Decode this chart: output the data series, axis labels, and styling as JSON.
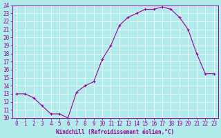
{
  "x": [
    0,
    1,
    2,
    3,
    4,
    5,
    6,
    7,
    8,
    9,
    10,
    11,
    12,
    13,
    14,
    15,
    16,
    17,
    18,
    19,
    20,
    21,
    22,
    23
  ],
  "y": [
    13.0,
    13.0,
    12.5,
    11.5,
    10.5,
    10.5,
    10.0,
    13.2,
    14.0,
    14.5,
    17.3,
    19.0,
    21.5,
    22.5,
    23.0,
    23.5,
    23.5,
    23.8,
    23.5,
    22.5,
    21.0,
    18.0,
    15.5,
    15.5
  ],
  "line_color": "#990099",
  "marker": "+",
  "marker_size": 3,
  "bg_color": "#b2ebeb",
  "grid_color": "#ffffff",
  "xlabel": "Windchill (Refroidissement éolien,°C)",
  "xlabel_color": "#990099",
  "tick_color": "#990099",
  "axis_color": "#990099",
  "ylim": [
    10,
    24
  ],
  "xlim": [
    -0.5,
    23.5
  ],
  "yticks": [
    10,
    11,
    12,
    13,
    14,
    15,
    16,
    17,
    18,
    19,
    20,
    21,
    22,
    23,
    24
  ],
  "xticks": [
    0,
    1,
    2,
    3,
    4,
    5,
    6,
    7,
    8,
    9,
    10,
    11,
    12,
    13,
    14,
    15,
    16,
    17,
    18,
    19,
    20,
    21,
    22,
    23
  ],
  "tick_fontsize": 5.5,
  "xlabel_fontsize": 5.5
}
